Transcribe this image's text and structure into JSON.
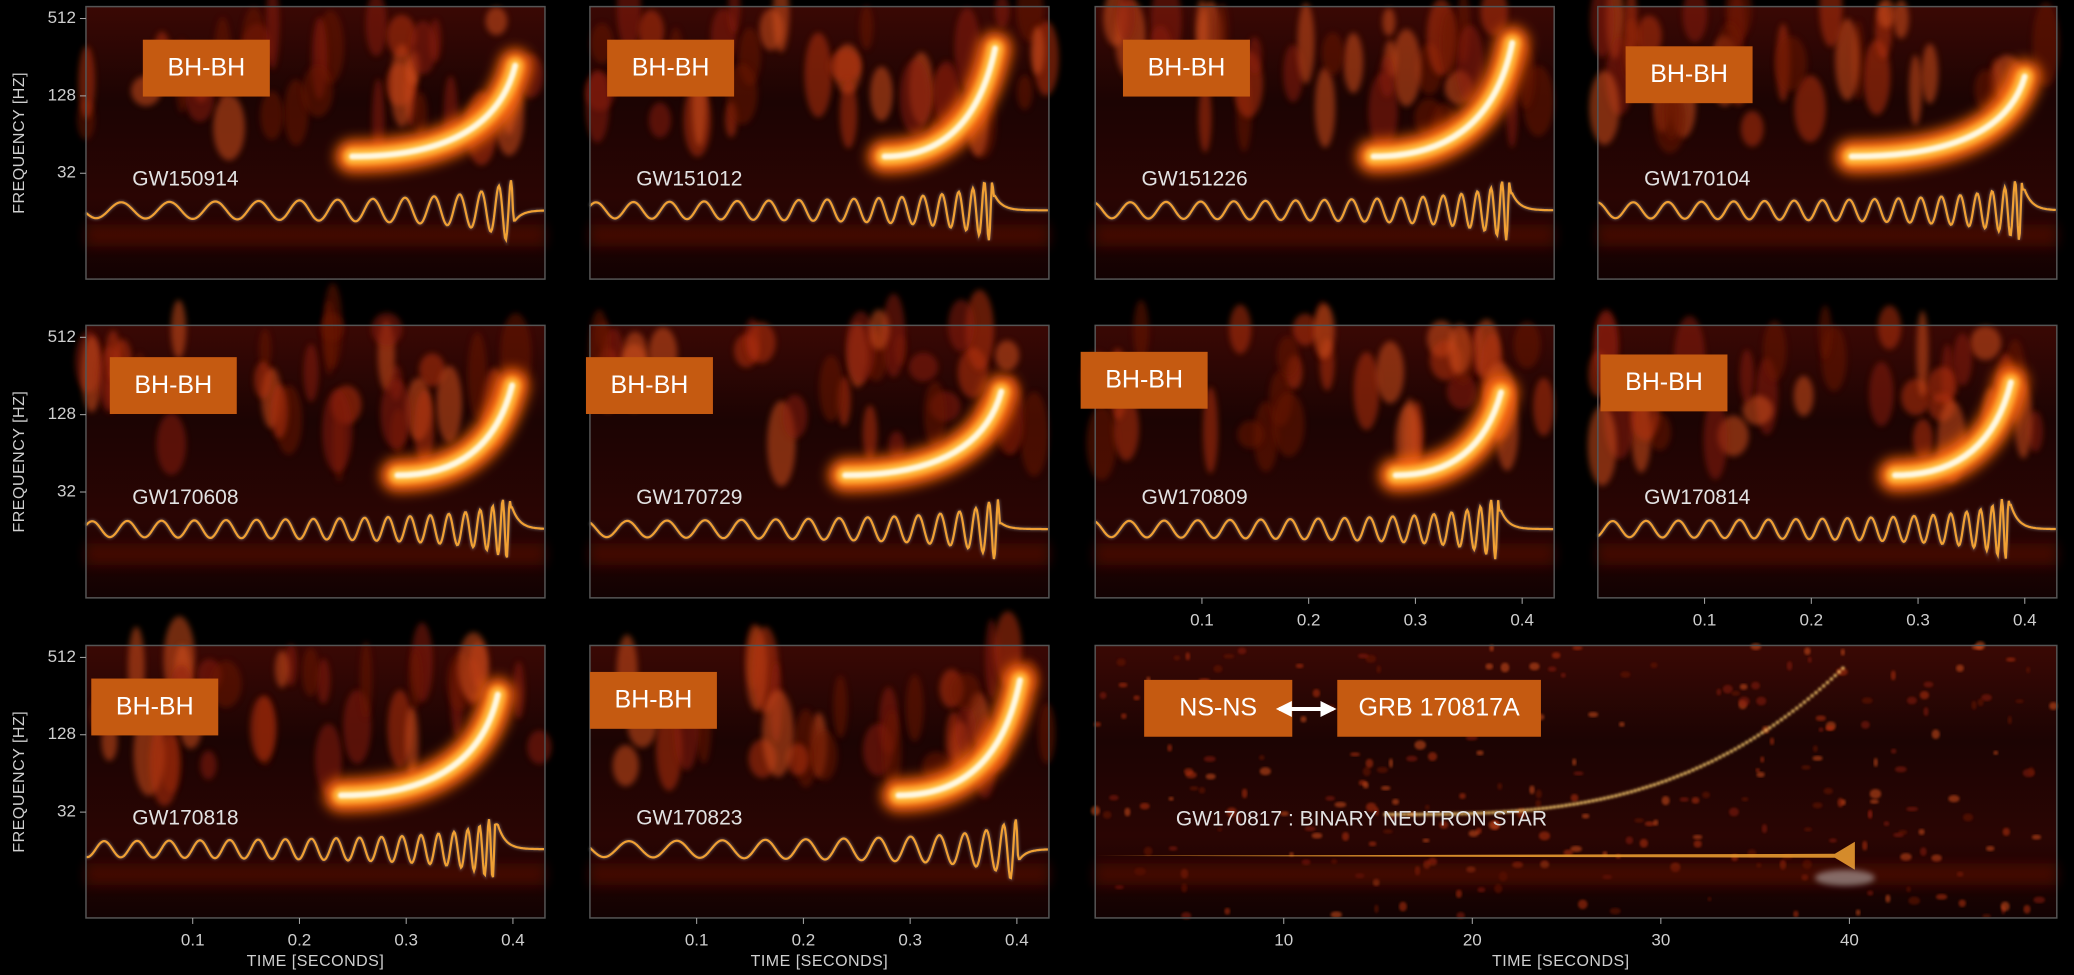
{
  "y_axis": {
    "label": "FREQUENCY [HZ]",
    "ticks": [
      512,
      128,
      32
    ],
    "lim": [
      4.8,
      634
    ],
    "log": true
  },
  "x_axis_bbh": {
    "label": "TIME [SECONDS]",
    "ticks": [
      0.1,
      0.2,
      0.3,
      0.4
    ],
    "lim": [
      0,
      0.43
    ]
  },
  "x_axis_bns": {
    "label": "TIME [SECONDS]",
    "ticks": [
      10,
      20,
      30,
      40
    ],
    "lim": [
      0,
      51
    ]
  },
  "panels": [
    {
      "tag": "BH-BH",
      "event": "GW150914"
    },
    {
      "tag": "BH-BH",
      "event": "GW151012"
    },
    {
      "tag": "BH-BH",
      "event": "GW151226"
    },
    {
      "tag": "BH-BH",
      "event": "GW170104"
    },
    {
      "tag": "BH-BH",
      "event": "GW170608"
    },
    {
      "tag": "BH-BH",
      "event": "GW170729"
    },
    {
      "tag": "BH-BH",
      "event": "GW170809"
    },
    {
      "tag": "BH-BH",
      "event": "GW170814"
    },
    {
      "tag": "BH-BH",
      "event": "GW170818"
    },
    {
      "tag": "BH-BH",
      "event": "GW170823"
    }
  ],
  "bns_panel": {
    "tag": "NS-NS",
    "grb": "GRB 170817A",
    "event": "GW170817 : BINARY NEUTRON STAR"
  }
}
